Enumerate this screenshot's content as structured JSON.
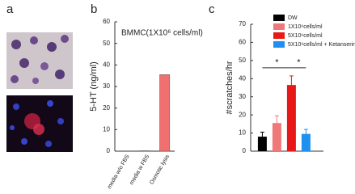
{
  "panel_labels": [
    "a",
    "b",
    "c"
  ],
  "chart_data": [
    {
      "type": "bar",
      "title": "BMMC(1X10⁶ cells/ml)",
      "y_label": "5-HT (ng/ml)",
      "categories": [
        "media w/o FBS",
        "media w FBS",
        "Osmotic lysis"
      ],
      "values": [
        0,
        0.2,
        35.5
      ],
      "color": "#f07070",
      "ylim": [
        0,
        60
      ],
      "yticks": [
        0,
        10,
        20,
        30,
        40,
        50,
        60
      ],
      "grid": false
    },
    {
      "type": "bar",
      "y_label": "#scratches/hr",
      "series": [
        {
          "name": "DW",
          "color": "#000000",
          "values": [
            8
          ],
          "errors": [
            2.5
          ]
        },
        {
          "name": "1X10⁶cells/ml",
          "color": "#f07878",
          "values": [
            15.5
          ],
          "errors": [
            4
          ]
        },
        {
          "name": "5X10⁶cells/ml",
          "color": "#e81818",
          "values": [
            36.5
          ],
          "errors": [
            5
          ]
        },
        {
          "name": "5X10⁶cells/ml + Ketanserin",
          "color": "#2090f0",
          "values": [
            9.5
          ],
          "errors": [
            2.5
          ]
        }
      ],
      "annotations": [
        "*",
        "*"
      ],
      "ylim": [
        0,
        70
      ],
      "yticks": [
        0,
        10,
        20,
        30,
        40,
        50,
        60,
        70
      ],
      "grid": false
    }
  ]
}
